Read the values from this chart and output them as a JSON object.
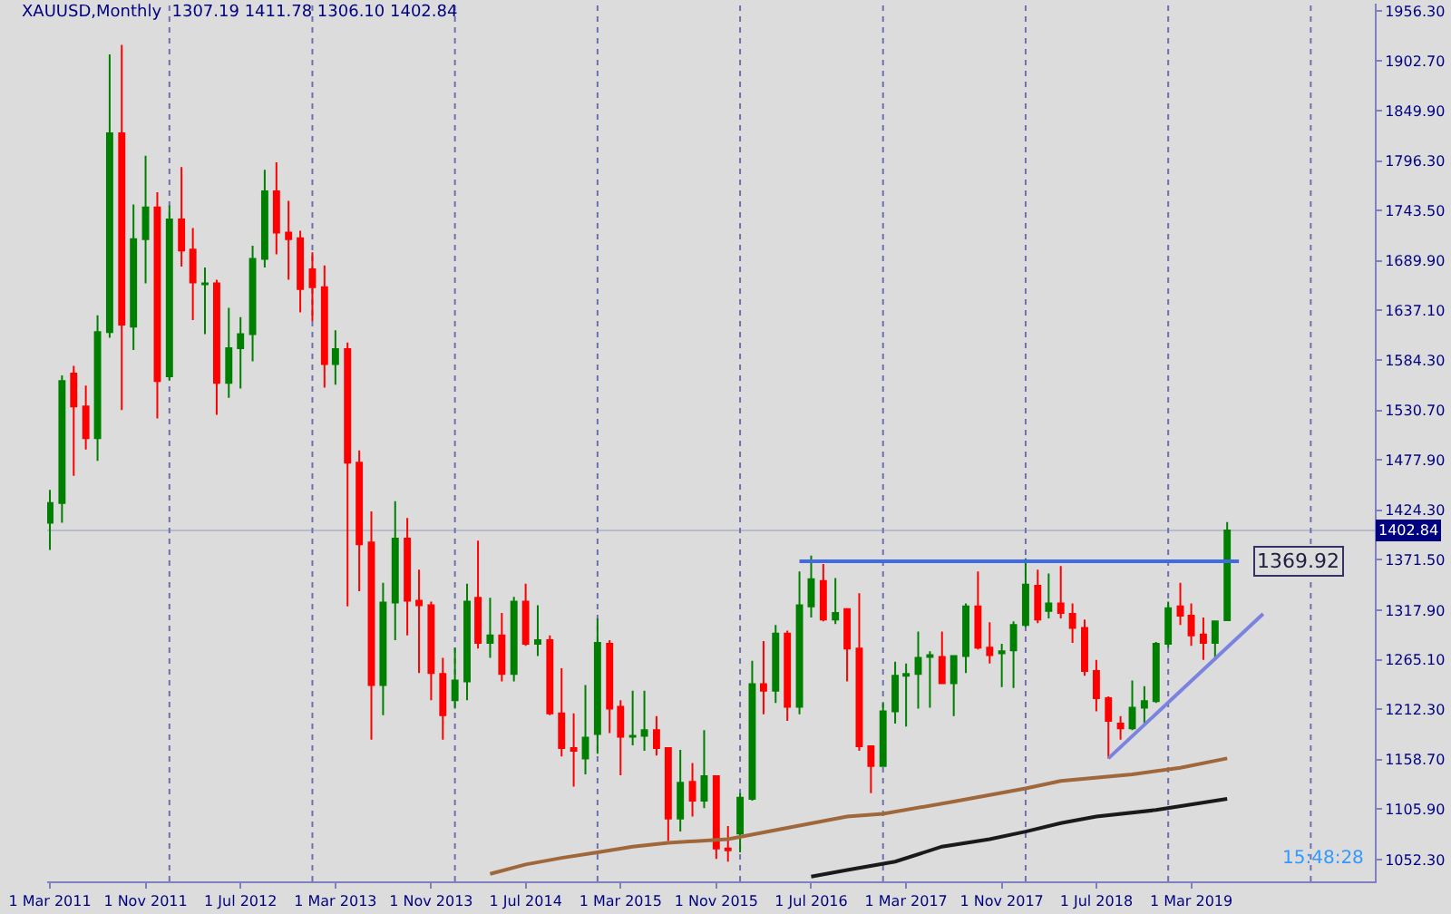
{
  "chart_data": {
    "type": "candlestick",
    "title": "XAUUSD,Monthly  1307.19 1411.78 1306.10 1402.84",
    "x": [
      "2011-03",
      "2011-04",
      "2011-05",
      "2011-06",
      "2011-07",
      "2011-08",
      "2011-09",
      "2011-10",
      "2011-11",
      "2011-12",
      "2012-01",
      "2012-02",
      "2012-03",
      "2012-04",
      "2012-05",
      "2012-06",
      "2012-07",
      "2012-08",
      "2012-09",
      "2012-10",
      "2012-11",
      "2012-12",
      "2013-01",
      "2013-02",
      "2013-03",
      "2013-04",
      "2013-05",
      "2013-06",
      "2013-07",
      "2013-08",
      "2013-09",
      "2013-10",
      "2013-11",
      "2013-12",
      "2014-01",
      "2014-02",
      "2014-03",
      "2014-04",
      "2014-05",
      "2014-06",
      "2014-07",
      "2014-08",
      "2014-09",
      "2014-10",
      "2014-11",
      "2014-12",
      "2015-01",
      "2015-02",
      "2015-03",
      "2015-04",
      "2015-05",
      "2015-06",
      "2015-07",
      "2015-08",
      "2015-09",
      "2015-10",
      "2015-11",
      "2015-12",
      "2016-01",
      "2016-02",
      "2016-03",
      "2016-04",
      "2016-05",
      "2016-06",
      "2016-07",
      "2016-08",
      "2016-09",
      "2016-10",
      "2016-11",
      "2016-12",
      "2017-01",
      "2017-02",
      "2017-03",
      "2017-04",
      "2017-05",
      "2017-06",
      "2017-07",
      "2017-08",
      "2017-09",
      "2017-10",
      "2017-11",
      "2017-12",
      "2018-01",
      "2018-02",
      "2018-03",
      "2018-04",
      "2018-05",
      "2018-06",
      "2018-07",
      "2018-08",
      "2018-09",
      "2018-10",
      "2018-11",
      "2018-12",
      "2019-01",
      "2019-02",
      "2019-03",
      "2019-04",
      "2019-05",
      "2019-06"
    ],
    "ohlc": [
      [
        1411,
        1446,
        1382,
        1432
      ],
      [
        1432,
        1568,
        1411,
        1562
      ],
      [
        1570,
        1578,
        1461,
        1535
      ],
      [
        1535,
        1557,
        1489,
        1501
      ],
      [
        1501,
        1632,
        1477,
        1614
      ],
      [
        1614,
        1910,
        1608,
        1826
      ],
      [
        1826,
        1920,
        1531,
        1622
      ],
      [
        1620,
        1750,
        1595,
        1713
      ],
      [
        1713,
        1802,
        1666,
        1747
      ],
      [
        1747,
        1763,
        1522,
        1562
      ],
      [
        1567,
        1749,
        1563,
        1734
      ],
      [
        1734,
        1790,
        1684,
        1701
      ],
      [
        1702,
        1725,
        1627,
        1667
      ],
      [
        1665,
        1683,
        1612,
        1666
      ],
      [
        1666,
        1670,
        1526,
        1560
      ],
      [
        1560,
        1640,
        1544,
        1597
      ],
      [
        1597,
        1630,
        1554,
        1612
      ],
      [
        1612,
        1706,
        1583,
        1692
      ],
      [
        1692,
        1787,
        1683,
        1764
      ],
      [
        1764,
        1795,
        1697,
        1720
      ],
      [
        1720,
        1754,
        1670,
        1713
      ],
      [
        1714,
        1722,
        1635,
        1660
      ],
      [
        1681,
        1699,
        1626,
        1662
      ],
      [
        1662,
        1685,
        1555,
        1580
      ],
      [
        1580,
        1616,
        1558,
        1596
      ],
      [
        1596,
        1603,
        1322,
        1475
      ],
      [
        1475,
        1488,
        1338,
        1388
      ],
      [
        1390,
        1423,
        1180,
        1238
      ],
      [
        1238,
        1347,
        1206,
        1326
      ],
      [
        1326,
        1434,
        1286,
        1394
      ],
      [
        1394,
        1416,
        1291,
        1328
      ],
      [
        1328,
        1361,
        1251,
        1323
      ],
      [
        1323,
        1327,
        1222,
        1251
      ],
      [
        1250,
        1267,
        1180,
        1206
      ],
      [
        1222,
        1278,
        1213,
        1243
      ],
      [
        1242,
        1346,
        1222,
        1327
      ],
      [
        1331,
        1392,
        1277,
        1283
      ],
      [
        1283,
        1331,
        1267,
        1291
      ],
      [
        1291,
        1315,
        1242,
        1250
      ],
      [
        1250,
        1332,
        1242,
        1327
      ],
      [
        1327,
        1346,
        1280,
        1282
      ],
      [
        1282,
        1323,
        1269,
        1286
      ],
      [
        1286,
        1291,
        1206,
        1208
      ],
      [
        1208,
        1256,
        1162,
        1171
      ],
      [
        1171,
        1208,
        1130,
        1168
      ],
      [
        1160,
        1238,
        1143,
        1182
      ],
      [
        1186,
        1309,
        1165,
        1283
      ],
      [
        1282,
        1286,
        1187,
        1213
      ],
      [
        1215,
        1222,
        1142,
        1183
      ],
      [
        1183,
        1232,
        1174,
        1184
      ],
      [
        1184,
        1232,
        1168,
        1190
      ],
      [
        1190,
        1205,
        1163,
        1171
      ],
      [
        1171,
        1172,
        1072,
        1096
      ],
      [
        1096,
        1169,
        1082,
        1134
      ],
      [
        1135,
        1155,
        1098,
        1115
      ],
      [
        1115,
        1190,
        1107,
        1141
      ],
      [
        1141,
        1142,
        1053,
        1064
      ],
      [
        1064,
        1088,
        1050,
        1062
      ],
      [
        1080,
        1123,
        1060,
        1118
      ],
      [
        1117,
        1264,
        1115,
        1239
      ],
      [
        1239,
        1285,
        1207,
        1232
      ],
      [
        1232,
        1302,
        1219,
        1293
      ],
      [
        1293,
        1296,
        1200,
        1215
      ],
      [
        1215,
        1359,
        1207,
        1323
      ],
      [
        1322,
        1376,
        1310,
        1351
      ],
      [
        1349,
        1367,
        1306,
        1308
      ],
      [
        1308,
        1352,
        1303,
        1315
      ],
      [
        1319,
        1320,
        1242,
        1277
      ],
      [
        1277,
        1336,
        1168,
        1173
      ],
      [
        1173,
        1174,
        1123,
        1152
      ],
      [
        1152,
        1219,
        1151,
        1210
      ],
      [
        1210,
        1263,
        1197,
        1248
      ],
      [
        1248,
        1261,
        1194,
        1250
      ],
      [
        1250,
        1295,
        1213,
        1267
      ],
      [
        1268,
        1274,
        1214,
        1270
      ],
      [
        1268,
        1295,
        1239,
        1240
      ],
      [
        1240,
        1270,
        1205,
        1269
      ],
      [
        1269,
        1325,
        1251,
        1322
      ],
      [
        1322,
        1359,
        1276,
        1278
      ],
      [
        1278,
        1305,
        1261,
        1270
      ],
      [
        1272,
        1282,
        1236,
        1274
      ],
      [
        1275,
        1306,
        1235,
        1302
      ],
      [
        1302,
        1373,
        1300,
        1345
      ],
      [
        1344,
        1361,
        1304,
        1308
      ],
      [
        1317,
        1357,
        1309,
        1325
      ],
      [
        1325,
        1365,
        1309,
        1315
      ],
      [
        1314,
        1325,
        1283,
        1299
      ],
      [
        1299,
        1308,
        1248,
        1253
      ],
      [
        1253,
        1265,
        1210,
        1224
      ],
      [
        1224,
        1226,
        1160,
        1200
      ],
      [
        1197,
        1205,
        1180,
        1192
      ],
      [
        1192,
        1243,
        1190,
        1214
      ],
      [
        1214,
        1237,
        1195,
        1221
      ],
      [
        1221,
        1284,
        1219,
        1282
      ],
      [
        1282,
        1327,
        1278,
        1320
      ],
      [
        1322,
        1347,
        1302,
        1312
      ],
      [
        1312,
        1325,
        1280,
        1291
      ],
      [
        1292,
        1310,
        1265,
        1283
      ],
      [
        1283,
        1307,
        1266,
        1306
      ],
      [
        1307.19,
        1411.78,
        1306.1,
        1402.84
      ]
    ],
    "colors": [
      "#008000",
      "#008000",
      "#ff0000",
      "#ff0000",
      "#008000",
      "#008000",
      "#ff0000",
      "#008000",
      "#008000",
      "#ff0000",
      "#008000",
      "#ff0000",
      "#ff0000",
      "#008000",
      "#ff0000",
      "#008000",
      "#008000",
      "#008000",
      "#008000",
      "#ff0000",
      "#ff0000",
      "#ff0000",
      "#ff0000",
      "#ff0000",
      "#008000",
      "#ff0000",
      "#ff0000",
      "#ff0000",
      "#008000",
      "#008000",
      "#ff0000",
      "#ff0000",
      "#ff0000",
      "#ff0000",
      "#008000",
      "#008000",
      "#ff0000",
      "#008000",
      "#ff0000",
      "#008000",
      "#ff0000",
      "#008000",
      "#ff0000",
      "#ff0000",
      "#ff0000",
      "#008000",
      "#008000",
      "#ff0000",
      "#ff0000",
      "#008000",
      "#008000",
      "#ff0000",
      "#ff0000",
      "#008000",
      "#ff0000",
      "#008000",
      "#ff0000",
      "#ff0000",
      "#008000",
      "#008000",
      "#ff0000",
      "#008000",
      "#ff0000",
      "#008000",
      "#008000",
      "#ff0000",
      "#008000",
      "#ff0000",
      "#ff0000",
      "#ff0000",
      "#008000",
      "#008000",
      "#008000",
      "#008000",
      "#008000",
      "#ff0000",
      "#008000",
      "#008000",
      "#ff0000",
      "#ff0000",
      "#008000",
      "#008000",
      "#008000",
      "#ff0000",
      "#008000",
      "#ff0000",
      "#ff0000",
      "#ff0000",
      "#ff0000",
      "#ff0000",
      "#ff0000",
      "#008000",
      "#008000",
      "#008000",
      "#008000",
      "#ff0000",
      "#ff0000",
      "#ff0000",
      "#008000",
      "#008000"
    ],
    "series": [
      {
        "type": "line",
        "color": "#a0683a",
        "x": [
          "2014-04",
          "2014-07",
          "2014-10",
          "2015-01",
          "2015-04",
          "2015-07",
          "2015-12",
          "2016-05",
          "2016-10",
          "2017-01",
          "2017-07",
          "2018-01",
          "2018-04",
          "2018-10",
          "2019-02",
          "2019-06"
        ],
        "values": [
          1037,
          1047,
          1054,
          1060,
          1066,
          1070,
          1074,
          1086,
          1098,
          1101,
          1114,
          1128,
          1136,
          1143,
          1150,
          1160
        ]
      },
      {
        "type": "line",
        "color": "#1a1a1a",
        "x": [
          "2016-07",
          "2016-10",
          "2017-02",
          "2017-06",
          "2017-10",
          "2018-01",
          "2018-04",
          "2018-07",
          "2018-12",
          "2019-06"
        ],
        "values": [
          1034,
          1041,
          1050,
          1066,
          1074,
          1082,
          1091,
          1098,
          1105,
          1117
        ]
      },
      {
        "type": "line",
        "color": "#4169e1",
        "x": [
          "2016-06",
          "2019-07"
        ],
        "values": [
          1369.92,
          1369.92
        ]
      },
      {
        "type": "line",
        "color": "#7b83e0",
        "x": [
          "2018-08",
          "2019-09"
        ],
        "values": [
          1160,
          1314
        ]
      }
    ],
    "ref_lines": [
      {
        "axis": "y",
        "value": 1402.84,
        "label": "1402.84",
        "color": "#b8bcc8"
      },
      {
        "axis": "x",
        "value": "2012-01",
        "label": null,
        "color": "#7070b0",
        "line_style": "dotted"
      },
      {
        "axis": "x",
        "value": "2013-01",
        "label": null,
        "color": "#7070b0",
        "line_style": "dotted"
      },
      {
        "axis": "x",
        "value": "2014-01",
        "label": null,
        "color": "#7070b0",
        "line_style": "dotted"
      },
      {
        "axis": "x",
        "value": "2015-01",
        "label": null,
        "color": "#7070b0",
        "line_style": "dotted"
      },
      {
        "axis": "x",
        "value": "2016-01",
        "label": null,
        "color": "#7070b0",
        "line_style": "dotted"
      },
      {
        "axis": "x",
        "value": "2017-01",
        "label": null,
        "color": "#7070b0",
        "line_style": "dotted"
      },
      {
        "axis": "x",
        "value": "2018-01",
        "label": null,
        "color": "#7070b0",
        "line_style": "dotted"
      },
      {
        "axis": "x",
        "value": "2019-01",
        "label": null,
        "color": "#7070b0",
        "line_style": "dotted"
      },
      {
        "axis": "x",
        "value": "2020-01",
        "label": null,
        "color": "#7070b0",
        "line_style": "dotted"
      }
    ],
    "annotations": [
      {
        "text": "1369.92",
        "x": "2019-07",
        "y": 1369.92
      },
      "15:48:28"
    ],
    "xlim": [
      "2011-02-22",
      "2020-06-13"
    ],
    "xticks": [
      {
        "value": "2011-03",
        "label": "1 Mar 2011"
      },
      {
        "value": "2011-11",
        "label": "1 Nov 2011"
      },
      {
        "value": "2012-07",
        "label": "1 Jul 2012"
      },
      {
        "value": "2013-03",
        "label": "1 Mar 2013"
      },
      {
        "value": "2013-11",
        "label": "1 Nov 2013"
      },
      {
        "value": "2014-07",
        "label": "1 Jul 2014"
      },
      {
        "value": "2015-03",
        "label": "1 Mar 2015"
      },
      {
        "value": "2015-11",
        "label": "1 Nov 2015"
      },
      {
        "value": "2016-07",
        "label": "1 Jul 2016"
      },
      {
        "value": "2017-03",
        "label": "1 Mar 2017"
      },
      {
        "value": "2017-11",
        "label": "1 Nov 2017"
      },
      {
        "value": "2018-07",
        "label": "1 Jul 2018"
      },
      {
        "value": "2019-03",
        "label": "1 Mar 2019"
      }
    ],
    "ylim": [
      1029,
      1964
    ],
    "yticks": [
      {
        "value": 1052.3,
        "label": "1052.30"
      },
      {
        "value": 1105.9,
        "label": "1105.90"
      },
      {
        "value": 1158.7,
        "label": "1158.70"
      },
      {
        "value": 1212.3,
        "label": "1212.30"
      },
      {
        "value": 1265.1,
        "label": "1265.10"
      },
      {
        "value": 1317.9,
        "label": "1317.90"
      },
      {
        "value": 1371.5,
        "label": "1371.50"
      },
      {
        "value": 1424.3,
        "label": "1424.30"
      },
      {
        "value": 1477.9,
        "label": "1477.90"
      },
      {
        "value": 1530.7,
        "label": "1530.70"
      },
      {
        "value": 1584.3,
        "label": "1584.30"
      },
      {
        "value": 1637.1,
        "label": "1637.10"
      },
      {
        "value": 1689.9,
        "label": "1689.90"
      },
      {
        "value": 1743.5,
        "label": "1743.50"
      },
      {
        "value": 1796.3,
        "label": "1796.30"
      },
      {
        "value": 1849.9,
        "label": "1849.90"
      },
      {
        "value": 1902.7,
        "label": "1902.70"
      },
      {
        "value": 1956.3,
        "label": "1956.30"
      }
    ],
    "tick_labels": "xy"
  }
}
